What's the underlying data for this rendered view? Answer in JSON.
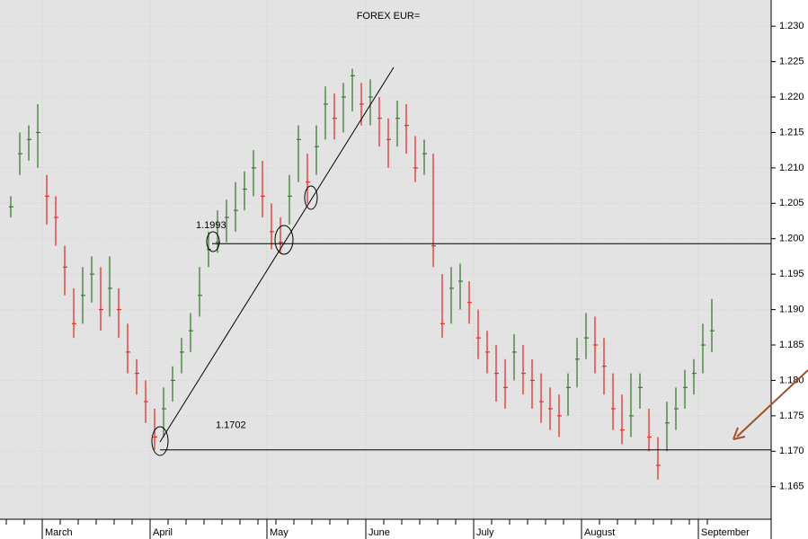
{
  "chart_data": {
    "type": "ohlc",
    "title": "FOREX EUR=",
    "categories": [
      null,
      null,
      null,
      null,
      "March",
      null,
      null,
      null,
      null,
      null,
      null,
      null,
      null,
      null,
      null,
      null,
      "April",
      null,
      null,
      null,
      null,
      null,
      null,
      null,
      null,
      null,
      null,
      null,
      null,
      "May",
      null,
      null,
      null,
      null,
      null,
      null,
      null,
      null,
      null,
      null,
      "June",
      null,
      null,
      null,
      null,
      null,
      null,
      null,
      null,
      null,
      null,
      null,
      "July",
      null,
      null,
      null,
      null,
      null,
      null,
      null,
      null,
      null,
      null,
      null,
      "August",
      null,
      null,
      null,
      null,
      null,
      null,
      null,
      null,
      null,
      null,
      null,
      null,
      "September",
      null
    ],
    "high": [
      1.206,
      1.215,
      1.216,
      1.219,
      1.209,
      1.206,
      1.199,
      1.193,
      1.196,
      1.1975,
      1.196,
      1.1975,
      1.193,
      1.188,
      1.183,
      1.18,
      1.176,
      1.179,
      1.182,
      1.186,
      1.1895,
      1.196,
      1.201,
      1.204,
      1.2055,
      1.208,
      1.2095,
      1.2125,
      1.211,
      1.205,
      1.203,
      1.209,
      1.216,
      1.212,
      1.216,
      1.2215,
      1.2205,
      1.222,
      1.224,
      1.222,
      1.2225,
      1.22,
      1.217,
      1.2195,
      1.219,
      1.2145,
      1.214,
      1.212,
      1.195,
      1.196,
      1.1965,
      1.194,
      1.19,
      1.187,
      1.185,
      1.183,
      1.1865,
      1.185,
      1.183,
      1.181,
      1.179,
      1.178,
      1.181,
      1.186,
      1.1895,
      1.189,
      1.186,
      1.181,
      1.178,
      1.181,
      1.181,
      1.176,
      1.172,
      1.177,
      1.179,
      1.1815,
      1.183,
      1.188,
      1.1915
    ],
    "low": [
      1.203,
      1.209,
      1.211,
      1.21,
      1.202,
      1.199,
      1.192,
      1.186,
      1.188,
      1.191,
      1.187,
      1.189,
      1.186,
      1.181,
      1.178,
      1.174,
      1.1702,
      1.172,
      1.177,
      1.181,
      1.184,
      1.189,
      1.196,
      1.198,
      1.1995,
      1.201,
      1.204,
      1.206,
      1.203,
      1.1985,
      1.198,
      1.202,
      1.208,
      1.205,
      1.209,
      1.214,
      1.214,
      1.215,
      1.218,
      1.216,
      1.216,
      1.213,
      1.21,
      1.213,
      1.212,
      1.208,
      1.209,
      1.196,
      1.186,
      1.188,
      1.19,
      1.188,
      1.183,
      1.181,
      1.177,
      1.176,
      1.18,
      1.178,
      1.176,
      1.174,
      1.173,
      1.172,
      1.175,
      1.179,
      1.183,
      1.181,
      1.178,
      1.173,
      1.171,
      1.172,
      1.176,
      1.17,
      1.166,
      1.17,
      1.173,
      1.176,
      1.178,
      1.181,
      1.184
    ],
    "close": [
      1.2045,
      1.212,
      1.214,
      1.215,
      1.206,
      1.203,
      1.196,
      1.188,
      1.192,
      1.195,
      1.19,
      1.193,
      1.19,
      1.184,
      1.181,
      1.177,
      1.172,
      1.176,
      1.18,
      1.184,
      1.187,
      1.192,
      1.1985,
      1.1995,
      1.203,
      1.204,
      1.207,
      1.21,
      1.206,
      1.201,
      1.1995,
      1.206,
      1.214,
      1.208,
      1.213,
      1.219,
      1.217,
      1.22,
      1.223,
      1.219,
      1.22,
      1.217,
      1.214,
      1.217,
      1.216,
      1.21,
      1.212,
      1.199,
      1.188,
      1.193,
      1.194,
      1.191,
      1.186,
      1.184,
      1.181,
      1.179,
      1.184,
      1.181,
      1.18,
      1.177,
      1.176,
      1.175,
      1.179,
      1.183,
      1.186,
      1.185,
      1.182,
      1.176,
      1.173,
      1.175,
      1.179,
      1.172,
      1.168,
      1.174,
      1.176,
      1.179,
      1.181,
      1.185,
      1.187
    ],
    "up_color": "#3c7d32",
    "down_color": "#e8302a",
    "ylim": [
      1.1604,
      1.2337
    ],
    "yticks": [
      {
        "value": 1.165,
        "label": "1.165"
      },
      {
        "value": 1.17,
        "label": "1.170"
      },
      {
        "value": 1.175,
        "label": "1.175"
      },
      {
        "value": 1.18,
        "label": "1.180"
      },
      {
        "value": 1.185,
        "label": "1.185"
      },
      {
        "value": 1.19,
        "label": "1.190"
      },
      {
        "value": 1.195,
        "label": "1.195"
      },
      {
        "value": 1.2,
        "label": "1.200"
      },
      {
        "value": 1.205,
        "label": "1.205"
      },
      {
        "value": 1.21,
        "label": "1.210"
      },
      {
        "value": 1.215,
        "label": "1.215"
      },
      {
        "value": 1.22,
        "label": "1.220"
      },
      {
        "value": 1.225,
        "label": "1.225"
      },
      {
        "value": 1.23,
        "label": "1.230"
      }
    ],
    "grid": true,
    "annotations": [
      {
        "text": "1.1993",
        "value": 1.1993
      },
      {
        "text": "1.1702",
        "value": 1.1702
      }
    ]
  }
}
